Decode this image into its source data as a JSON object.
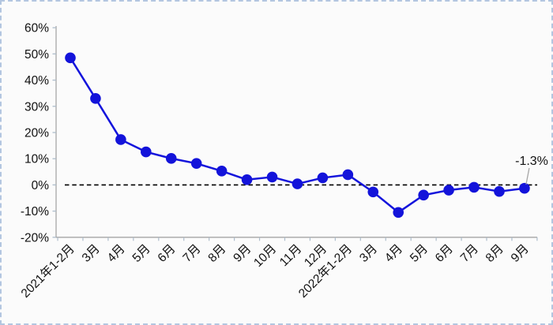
{
  "chart_data": {
    "type": "line",
    "title": "",
    "xlabel": "",
    "ylabel": "",
    "categories": [
      "2021年1-2月",
      "3月",
      "4月",
      "5月",
      "6月",
      "7月",
      "8月",
      "9月",
      "10月",
      "11月",
      "12月",
      "2022年1-2月",
      "3月",
      "4月",
      "5月",
      "6月",
      "7月",
      "8月",
      "9月"
    ],
    "values": [
      48.5,
      33.0,
      17.3,
      12.6,
      10.1,
      8.2,
      5.3,
      2.0,
      3.0,
      0.4,
      2.7,
      3.9,
      -2.7,
      -10.5,
      -3.9,
      -2.0,
      -0.9,
      -2.5,
      -1.3
    ],
    "unit": "%",
    "ylim": [
      -20,
      60
    ],
    "ytick_step": 10,
    "ytick_labels": [
      "60%",
      "50%",
      "40%",
      "30%",
      "20%",
      "10%",
      "0%",
      "-10%",
      "-20%"
    ],
    "grid": "off",
    "legend": "none",
    "zero_line_style": "dashed",
    "annotation": {
      "text": "-1.3%",
      "target_index": 18
    },
    "colors": {
      "series": "#1414DC",
      "marker": "#1313DA",
      "axis": "#A6A6A6",
      "tick": "#AEBDCB",
      "zero_line": "#000000",
      "leader_line": "#A6A6A6",
      "label_text": "#111111",
      "background": "#FBFBFB",
      "frame_border": "#B3C6E0"
    }
  }
}
